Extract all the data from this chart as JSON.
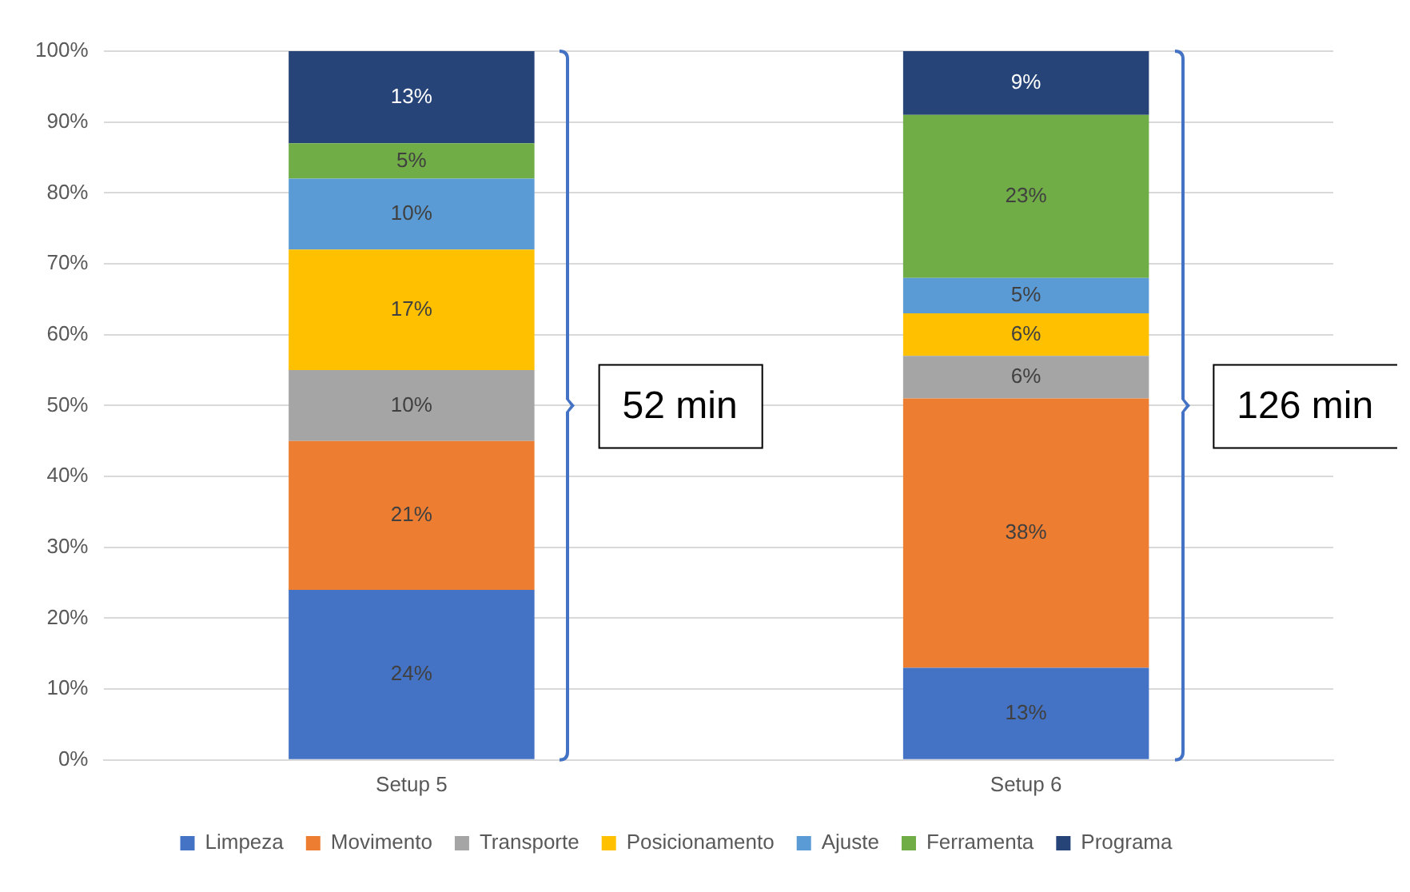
{
  "chart_data": {
    "type": "bar",
    "stacked": true,
    "categories": [
      "Setup 5",
      "Setup 6"
    ],
    "series": [
      {
        "name": "Limpeza",
        "color": "#4472c4",
        "values": [
          24,
          13
        ],
        "value_labels": [
          "24%",
          "13%"
        ]
      },
      {
        "name": "Movimento",
        "color": "#ed7d31",
        "values": [
          21,
          38
        ],
        "value_labels": [
          "21%",
          "38%"
        ]
      },
      {
        "name": "Transporte",
        "color": "#a5a5a5",
        "values": [
          10,
          6
        ],
        "value_labels": [
          "10%",
          "6%"
        ]
      },
      {
        "name": "Posicionamento",
        "color": "#ffc000",
        "values": [
          17,
          6
        ],
        "value_labels": [
          "17%",
          "6%"
        ]
      },
      {
        "name": "Ajuste",
        "color": "#5b9bd5",
        "values": [
          10,
          5
        ],
        "value_labels": [
          "10%",
          "5%"
        ]
      },
      {
        "name": "Ferramenta",
        "color": "#70ad47",
        "values": [
          5,
          23
        ],
        "value_labels": [
          "5%",
          "23%"
        ]
      },
      {
        "name": "Programa",
        "color": "#264478",
        "values": [
          13,
          9
        ],
        "value_labels": [
          "13%",
          "9%"
        ]
      }
    ],
    "ylim": [
      0,
      100
    ],
    "yticks": [
      {
        "value": 0,
        "label": "0%"
      },
      {
        "value": 10,
        "label": "10%"
      },
      {
        "value": 20,
        "label": "20%"
      },
      {
        "value": 30,
        "label": "30%"
      },
      {
        "value": 40,
        "label": "40%"
      },
      {
        "value": 50,
        "label": "50%"
      },
      {
        "value": 60,
        "label": "60%"
      },
      {
        "value": 70,
        "label": "70%"
      },
      {
        "value": 80,
        "label": "80%"
      },
      {
        "value": 90,
        "label": "90%"
      },
      {
        "value": 100,
        "label": "100%"
      }
    ],
    "grid": "y",
    "legend": "bottom",
    "annotations": [
      "52 min",
      "126 min"
    ]
  }
}
